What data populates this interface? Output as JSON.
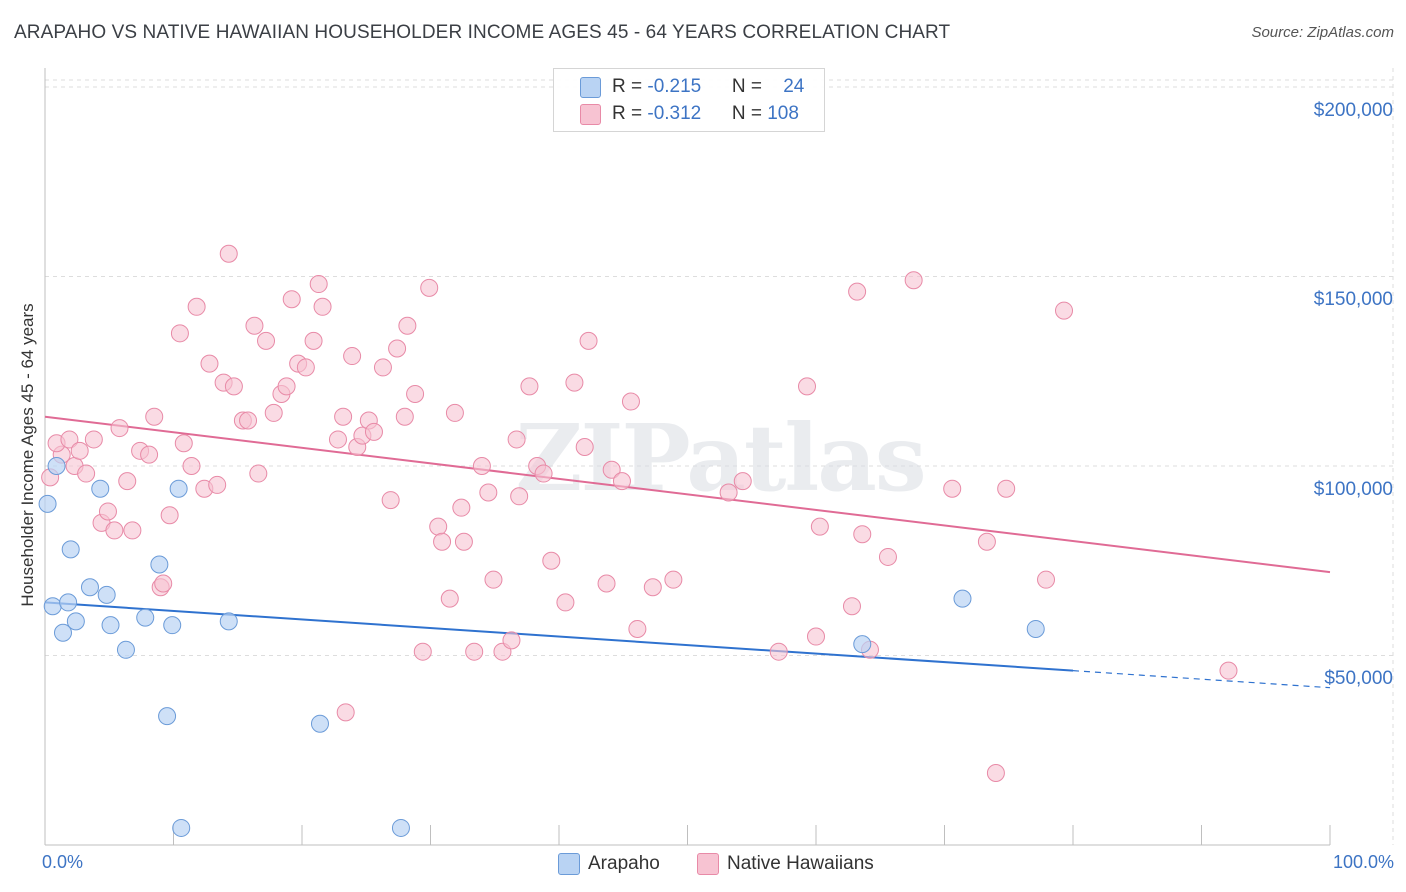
{
  "title": "ARAPAHO VS NATIVE HAWAIIAN HOUSEHOLDER INCOME AGES 45 - 64 YEARS CORRELATION CHART",
  "source": "Source: ZipAtlas.com",
  "watermark": "ZIPatlas",
  "colors": {
    "arapaho_fill": "#b9d3f3",
    "arapaho_stroke": "#6b9bd8",
    "arapaho_line": "#2f72cf",
    "hawaiian_fill": "#f7c3d2",
    "hawaiian_stroke": "#e88aa7",
    "hawaiian_line": "#e06b95",
    "accent": "#3d74c4",
    "grid": "#dddddd"
  },
  "legend": {
    "arapaho": {
      "r_label": "R = ",
      "r_value": "-0.215",
      "n_label": "N = ",
      "n_value": "24"
    },
    "hawaiian": {
      "r_label": "R = ",
      "r_value": "-0.312",
      "n_label": "N = ",
      "n_value": "108"
    }
  },
  "bottom_legend": {
    "arapaho": "Arapaho",
    "hawaiian": "Native Hawaiians"
  },
  "chart_data": {
    "type": "scatter",
    "xlabel": "",
    "ylabel": "Householder Income Ages 45 - 64 years",
    "xlim": [
      0,
      100
    ],
    "ylim": [
      0,
      205000
    ],
    "x_tick_labels": [
      "0.0%",
      "100.0%"
    ],
    "y_ticks": [
      {
        "value": 50000,
        "label": "$50,000"
      },
      {
        "value": 100000,
        "label": "$100,000"
      },
      {
        "value": 150000,
        "label": "$150,000"
      },
      {
        "value": 200000,
        "label": "$200,000"
      }
    ],
    "grid": true,
    "series": [
      {
        "name": "Arapaho",
        "trend": {
          "x0": 0,
          "y0": 64000,
          "x1": 80,
          "y1": 46000,
          "dash_to_x": 100,
          "dash_to_y": 41500
        },
        "points": [
          [
            0.2,
            90000
          ],
          [
            0.9,
            100000
          ],
          [
            0.6,
            63000
          ],
          [
            1.8,
            64000
          ],
          [
            1.4,
            56000
          ],
          [
            2.4,
            59000
          ],
          [
            2.0,
            78000
          ],
          [
            3.5,
            68000
          ],
          [
            4.3,
            94000
          ],
          [
            4.8,
            66000
          ],
          [
            5.1,
            58000
          ],
          [
            6.3,
            51500
          ],
          [
            7.8,
            60000
          ],
          [
            8.9,
            74000
          ],
          [
            9.9,
            58000
          ],
          [
            10.4,
            94000
          ],
          [
            9.5,
            34000
          ],
          [
            10.6,
            4500
          ],
          [
            14.3,
            59000
          ],
          [
            21.4,
            32000
          ],
          [
            27.7,
            4500
          ],
          [
            63.6,
            53000
          ],
          [
            71.4,
            65000
          ],
          [
            77.1,
            57000
          ]
        ]
      },
      {
        "name": "Native Hawaiians",
        "trend": {
          "x0": 0,
          "y0": 113000,
          "x1": 100,
          "y1": 72000
        },
        "points": [
          [
            0.4,
            97000
          ],
          [
            1.3,
            103000
          ],
          [
            0.9,
            106000
          ],
          [
            1.9,
            107000
          ],
          [
            2.3,
            100000
          ],
          [
            2.7,
            104000
          ],
          [
            3.2,
            98000
          ],
          [
            3.8,
            107000
          ],
          [
            4.4,
            85000
          ],
          [
            4.9,
            88000
          ],
          [
            5.4,
            83000
          ],
          [
            5.8,
            110000
          ],
          [
            6.4,
            96000
          ],
          [
            6.8,
            83000
          ],
          [
            7.4,
            104000
          ],
          [
            8.1,
            103000
          ],
          [
            8.5,
            113000
          ],
          [
            9.0,
            68000
          ],
          [
            9.2,
            69000
          ],
          [
            9.7,
            87000
          ],
          [
            10.5,
            135000
          ],
          [
            10.8,
            106000
          ],
          [
            11.4,
            100000
          ],
          [
            11.8,
            142000
          ],
          [
            12.4,
            94000
          ],
          [
            12.8,
            127000
          ],
          [
            13.4,
            95000
          ],
          [
            13.9,
            122000
          ],
          [
            14.3,
            156000
          ],
          [
            14.7,
            121000
          ],
          [
            15.4,
            112000
          ],
          [
            15.8,
            112000
          ],
          [
            16.3,
            137000
          ],
          [
            16.6,
            98000
          ],
          [
            17.2,
            133000
          ],
          [
            17.8,
            114000
          ],
          [
            18.4,
            119000
          ],
          [
            18.8,
            121000
          ],
          [
            19.2,
            144000
          ],
          [
            19.7,
            127000
          ],
          [
            20.3,
            126000
          ],
          [
            20.9,
            133000
          ],
          [
            21.3,
            148000
          ],
          [
            21.6,
            142000
          ],
          [
            22.8,
            107000
          ],
          [
            23.2,
            113000
          ],
          [
            23.9,
            129000
          ],
          [
            24.3,
            105000
          ],
          [
            24.7,
            108000
          ],
          [
            25.2,
            112000
          ],
          [
            25.6,
            109000
          ],
          [
            26.3,
            126000
          ],
          [
            26.9,
            91000
          ],
          [
            27.4,
            131000
          ],
          [
            28.0,
            113000
          ],
          [
            28.2,
            137000
          ],
          [
            28.8,
            119000
          ],
          [
            29.4,
            51000
          ],
          [
            29.9,
            147000
          ],
          [
            30.6,
            84000
          ],
          [
            30.9,
            80000
          ],
          [
            31.5,
            65000
          ],
          [
            31.9,
            114000
          ],
          [
            32.4,
            89000
          ],
          [
            32.6,
            80000
          ],
          [
            33.4,
            51000
          ],
          [
            34.0,
            100000
          ],
          [
            34.5,
            93000
          ],
          [
            34.9,
            70000
          ],
          [
            35.6,
            51000
          ],
          [
            36.3,
            54000
          ],
          [
            36.7,
            107000
          ],
          [
            36.9,
            92000
          ],
          [
            37.7,
            121000
          ],
          [
            38.3,
            100000
          ],
          [
            38.8,
            98000
          ],
          [
            39.4,
            75000
          ],
          [
            40.5,
            64000
          ],
          [
            41.2,
            122000
          ],
          [
            42.0,
            105000
          ],
          [
            42.3,
            133000
          ],
          [
            43.7,
            69000
          ],
          [
            44.1,
            99000
          ],
          [
            44.9,
            96000
          ],
          [
            45.6,
            117000
          ],
          [
            46.1,
            57000
          ],
          [
            47.3,
            68000
          ],
          [
            48.9,
            70000
          ],
          [
            53.2,
            93000
          ],
          [
            54.3,
            96000
          ],
          [
            57.1,
            51000
          ],
          [
            59.3,
            121000
          ],
          [
            60.0,
            55000
          ],
          [
            60.3,
            84000
          ],
          [
            62.8,
            63000
          ],
          [
            63.2,
            146000
          ],
          [
            63.6,
            82000
          ],
          [
            64.2,
            51500
          ],
          [
            65.6,
            76000
          ],
          [
            67.6,
            149000
          ],
          [
            70.6,
            94000
          ],
          [
            73.3,
            80000
          ],
          [
            74.8,
            94000
          ],
          [
            77.9,
            70000
          ],
          [
            79.3,
            141000
          ],
          [
            92.1,
            46000
          ],
          [
            74.0,
            19000
          ],
          [
            23.4,
            35000
          ]
        ]
      }
    ]
  }
}
